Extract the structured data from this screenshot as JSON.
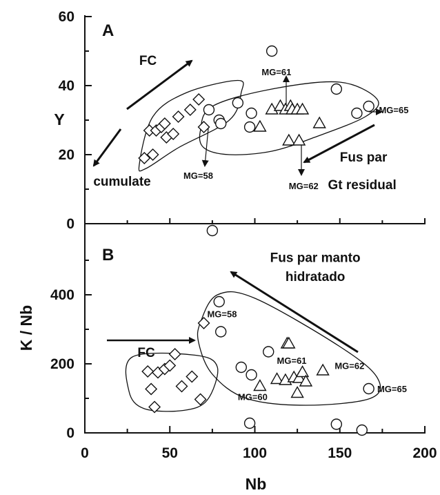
{
  "chart_data": [
    {
      "panel": "A",
      "type": "scatter",
      "xlabel": "",
      "ylabel": "Y",
      "xlim": [
        0,
        200
      ],
      "ylim": [
        0,
        60
      ],
      "yticks": [
        "0",
        "20",
        "40",
        "60"
      ],
      "series": [
        {
          "marker": "diamond",
          "points": [
            [
              35,
              19
            ],
            [
              38,
              27
            ],
            [
              40,
              20
            ],
            [
              42,
              27
            ],
            [
              45,
              28
            ],
            [
              47,
              29
            ],
            [
              48,
              25
            ],
            [
              52,
              26
            ],
            [
              55,
              31
            ],
            [
              62,
              33
            ],
            [
              67,
              36
            ],
            [
              70,
              28
            ]
          ]
        },
        {
          "marker": "circle",
          "points": [
            [
              75,
              -2
            ],
            [
              73,
              33
            ],
            [
              79,
              30
            ],
            [
              80,
              29
            ],
            [
              90,
              35
            ],
            [
              97,
              28
            ],
            [
              98,
              32
            ],
            [
              110,
              50
            ],
            [
              148,
              39
            ],
            [
              160,
              32
            ],
            [
              167,
              34
            ]
          ]
        },
        {
          "marker": "triangle",
          "points": [
            [
              103,
              28
            ],
            [
              110,
              33
            ],
            [
              115,
              34
            ],
            [
              118,
              33
            ],
            [
              120,
              24
            ],
            [
              121,
              34
            ],
            [
              122,
              33
            ],
            [
              125,
              33
            ],
            [
              126,
              24
            ],
            [
              128,
              33
            ],
            [
              138,
              29
            ]
          ]
        }
      ],
      "annotations": [
        {
          "text": "FC",
          "x": 32,
          "y": 46
        },
        {
          "text": "cumulate",
          "x": 5,
          "y": 11
        },
        {
          "text": "MG=58",
          "x": 58,
          "y": 13
        },
        {
          "text": "MG=61",
          "x": 104,
          "y": 43
        },
        {
          "text": "MG=62",
          "x": 120,
          "y": 10
        },
        {
          "text": "MG=65",
          "x": 173,
          "y": 32
        },
        {
          "text": "Fus par",
          "x": 150,
          "y": 18
        },
        {
          "text": "Gt residual",
          "x": 143,
          "y": 10
        }
      ]
    },
    {
      "panel": "B",
      "type": "scatter",
      "xlabel": "Nb",
      "ylabel": "K / Nb",
      "xlim": [
        0,
        200
      ],
      "ylim": [
        0,
        600
      ],
      "xticks": [
        "0",
        "50",
        "100",
        "150",
        "200"
      ],
      "yticks": [
        "0",
        "200",
        "400"
      ],
      "series": [
        {
          "marker": "diamond",
          "points": [
            [
              37,
              178
            ],
            [
              39,
              127
            ],
            [
              41,
              75
            ],
            [
              43,
              175
            ],
            [
              47,
              185
            ],
            [
              50,
              195
            ],
            [
              53,
              228
            ],
            [
              57,
              135
            ],
            [
              63,
              163
            ],
            [
              68,
              97
            ],
            [
              70,
              318
            ]
          ]
        },
        {
          "marker": "circle",
          "points": [
            [
              79,
              380
            ],
            [
              80,
              293
            ],
            [
              92,
              190
            ],
            [
              98,
              168
            ],
            [
              97,
              28
            ],
            [
              108,
              235
            ],
            [
              148,
              25
            ],
            [
              163,
              8
            ],
            [
              167,
              128
            ]
          ]
        },
        {
          "marker": "triangle",
          "points": [
            [
              103,
              135
            ],
            [
              113,
              155
            ],
            [
              118,
              152
            ],
            [
              119,
              258
            ],
            [
              120,
              258
            ],
            [
              123,
              160
            ],
            [
              125,
              115
            ],
            [
              126,
              158
            ],
            [
              128,
              175
            ],
            [
              130,
              148
            ],
            [
              140,
              180
            ]
          ]
        }
      ],
      "annotations": [
        {
          "text": "FC",
          "x": 31,
          "y": 220
        },
        {
          "text": "MG=58",
          "x": 72,
          "y": 335
        },
        {
          "text": "MG=61",
          "x": 113,
          "y": 200
        },
        {
          "text": "MG=62",
          "x": 147,
          "y": 185
        },
        {
          "text": "MG=60",
          "x": 90,
          "y": 95
        },
        {
          "text": "MG=65",
          "x": 172,
          "y": 118
        },
        {
          "text": "Fus par manto",
          "x": 109,
          "y": 495
        },
        {
          "text": "hidratado",
          "x": 118,
          "y": 440
        }
      ]
    }
  ],
  "panel_labels": {
    "a": "A",
    "b": "B"
  },
  "y_axis_a": "Y",
  "y_axis_b": "K / Nb",
  "x_axis": "Nb"
}
